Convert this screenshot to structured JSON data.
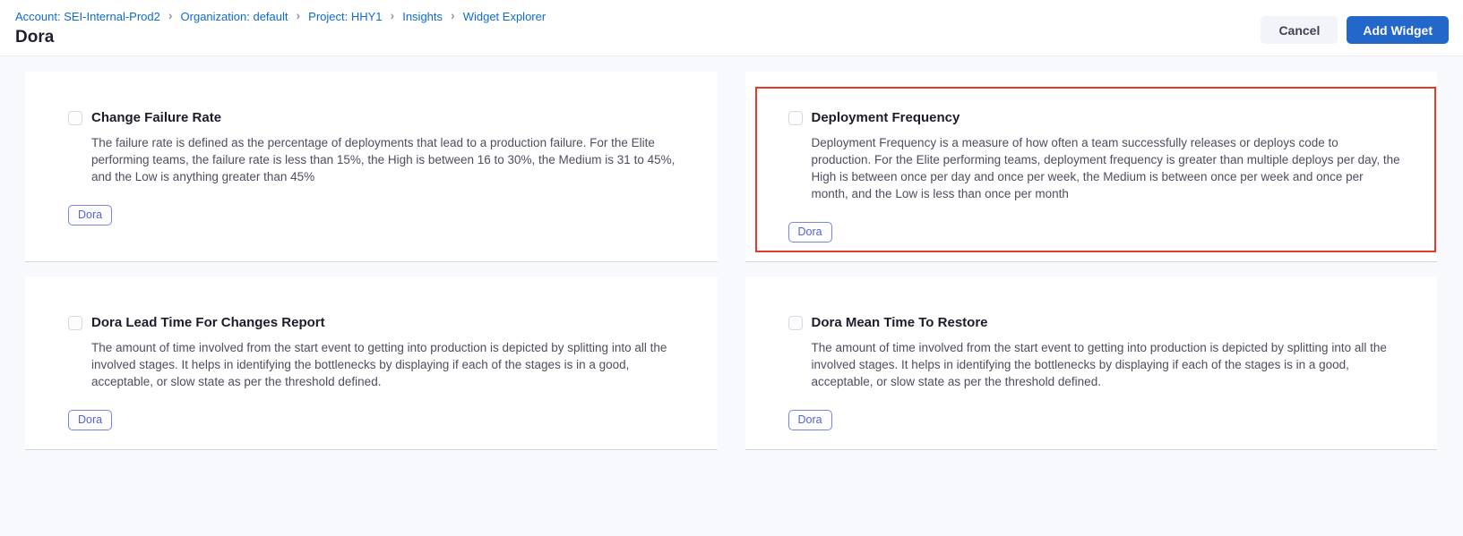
{
  "breadcrumb": {
    "separator": "›",
    "items": [
      {
        "label": "Account: SEI-Internal-Prod2"
      },
      {
        "label": "Organization: default"
      },
      {
        "label": "Project: HHY1"
      },
      {
        "label": "Insights"
      },
      {
        "label": "Widget Explorer"
      }
    ]
  },
  "page": {
    "title": "Dora"
  },
  "actions": {
    "cancel_label": "Cancel",
    "add_widget_label": "Add Widget"
  },
  "widgets": [
    {
      "title": "Change Failure Rate",
      "description": "The failure rate is defined as the percentage of deployments that lead to a production failure. For the Elite performing teams, the failure rate is less than 15%, the High is between 16 to 30%, the Medium is 31 to 45%, and the Low is anything greater than 45%",
      "tag": "Dora",
      "checked": false,
      "highlighted": false
    },
    {
      "title": "Deployment Frequency",
      "description": "Deployment Frequency is a measure of how often a team successfully releases or deploys code to production. For the Elite performing teams, deployment frequency is greater than multiple deploys per day, the High is between once per day and once per week, the Medium is between once per week and once per month, and the Low is less than once per month",
      "tag": "Dora",
      "checked": false,
      "highlighted": true
    },
    {
      "title": "Dora Lead Time For Changes Report",
      "description": "The amount of time involved from the start event to getting into production is depicted by splitting into all the involved stages. It helps in identifying the bottlenecks by displaying if each of the stages is in a good, acceptable, or slow state as per the threshold defined.",
      "tag": "Dora",
      "checked": false,
      "highlighted": false
    },
    {
      "title": "Dora Mean Time To Restore",
      "description": "The amount of time involved from the start event to getting into production is depicted by splitting into all the involved stages. It helps in identifying the bottlenecks by displaying if each of the stages is in a good, acceptable, or slow state as per the threshold defined.",
      "tag": "Dora",
      "checked": false,
      "highlighted": false
    }
  ],
  "colors": {
    "link_blue": "#0e6bd2",
    "accent_blue": "#2467cb",
    "tag_blue": "#5463d4",
    "tag_border": "#7b85dd",
    "highlight_red": "#e8382a",
    "page_bg": "#f8f9fd"
  }
}
